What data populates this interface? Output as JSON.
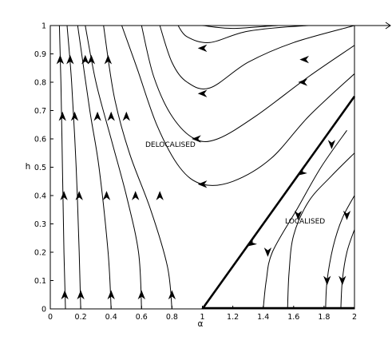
{
  "chart_data": {
    "type": "line",
    "xlabel": "α",
    "ylabel": "h",
    "xlim": [
      0,
      2
    ],
    "ylim": [
      0,
      1
    ],
    "xticks": [
      "0",
      "0.2",
      "0.4",
      "0.6",
      "0.8",
      "1",
      "1.2",
      "1.4",
      "1.6",
      "1.8",
      "2"
    ],
    "yticks": [
      "0",
      "0.1",
      "0.2",
      "0.3",
      "0.4",
      "0.5",
      "0.6",
      "0.7",
      "0.8",
      "0.9",
      "1"
    ],
    "annotations": [
      {
        "text": "DELOCALISED",
        "x": 0.96,
        "y": 0.535
      },
      {
        "text": "LOCALISED",
        "x": 1.69,
        "y": 0.285
      }
    ],
    "separatrix": [
      [
        1.0,
        0.0
      ],
      [
        2.0,
        0.75
      ]
    ],
    "bottom_fixed_line": [
      [
        1.0,
        0.0
      ],
      [
        2.0,
        0.0
      ]
    ],
    "series": [
      {
        "points": [
          [
            0.1,
            0.0
          ],
          [
            0.09,
            0.2
          ],
          [
            0.08,
            0.5
          ],
          [
            0.07,
            0.8
          ],
          [
            0.06,
            1.0
          ]
        ]
      },
      {
        "points": [
          [
            0.2,
            0.0
          ],
          [
            0.19,
            0.2
          ],
          [
            0.17,
            0.5
          ],
          [
            0.14,
            0.8
          ],
          [
            0.11,
            1.0
          ]
        ]
      },
      {
        "points": [
          [
            0.4,
            0.0
          ],
          [
            0.38,
            0.2
          ],
          [
            0.32,
            0.5
          ],
          [
            0.26,
            0.7
          ],
          [
            0.18,
            1.0
          ]
        ]
      },
      {
        "points": [
          [
            0.6,
            0.0
          ],
          [
            0.58,
            0.2
          ],
          [
            0.5,
            0.4
          ],
          [
            0.4,
            0.6
          ],
          [
            0.3,
            0.8
          ],
          [
            0.23,
            1.0
          ]
        ]
      },
      {
        "points": [
          [
            0.8,
            0.0
          ],
          [
            0.77,
            0.15
          ],
          [
            0.66,
            0.35
          ],
          [
            0.52,
            0.55
          ],
          [
            0.42,
            0.75
          ],
          [
            0.35,
            1.0
          ]
        ]
      },
      {
        "points": [
          [
            2.0,
            0.93
          ],
          [
            1.7,
            0.82
          ],
          [
            1.35,
            0.68
          ],
          [
            1.1,
            0.6
          ],
          [
            0.95,
            0.6
          ],
          [
            0.8,
            0.68
          ],
          [
            0.68,
            0.82
          ],
          [
            0.6,
            1.0
          ]
        ]
      },
      {
        "points": [
          [
            2.0,
            0.83
          ],
          [
            1.7,
            0.68
          ],
          [
            1.45,
            0.53
          ],
          [
            1.2,
            0.45
          ],
          [
            1.0,
            0.44
          ],
          [
            0.85,
            0.5
          ],
          [
            0.7,
            0.65
          ],
          [
            0.57,
            0.85
          ],
          [
            0.47,
            1.0
          ]
        ]
      },
      {
        "points": [
          [
            2.0,
            1.0
          ],
          [
            1.6,
            0.94
          ],
          [
            1.3,
            0.87
          ],
          [
            1.05,
            0.78
          ],
          [
            0.9,
            0.8
          ],
          [
            0.8,
            0.87
          ],
          [
            0.72,
            1.0
          ]
        ]
      },
      {
        "points": [
          [
            2.0,
            1.0
          ],
          [
            1.7,
            1.0
          ],
          [
            1.3,
            0.98
          ],
          [
            1.05,
            0.94
          ],
          [
            0.9,
            0.96
          ],
          [
            0.84,
            1.0
          ]
        ]
      },
      {
        "points": [
          [
            1.75,
            1.0
          ],
          [
            1.5,
            1.0
          ],
          [
            1.2,
            0.99
          ],
          [
            1.0,
            1.0
          ]
        ]
      },
      {
        "points": [
          [
            1.47,
            1.0
          ],
          [
            1.35,
            1.0
          ],
          [
            1.18,
            1.0
          ]
        ]
      },
      {
        "points": [
          [
            2.0,
            0.55
          ],
          [
            1.85,
            0.47
          ],
          [
            1.7,
            0.38
          ],
          [
            1.6,
            0.26
          ],
          [
            1.57,
            0.13
          ],
          [
            1.56,
            0.0
          ]
        ]
      },
      {
        "points": [
          [
            1.95,
            0.63
          ],
          [
            1.78,
            0.5
          ],
          [
            1.62,
            0.35
          ],
          [
            1.46,
            0.2
          ],
          [
            1.42,
            0.1
          ],
          [
            1.4,
            0.0
          ]
        ]
      },
      {
        "points": [
          [
            2.0,
            0.4
          ],
          [
            1.92,
            0.32
          ],
          [
            1.86,
            0.22
          ],
          [
            1.82,
            0.1
          ],
          [
            1.81,
            0.0
          ]
        ]
      },
      {
        "points": [
          [
            2.0,
            0.28
          ],
          [
            1.95,
            0.2
          ],
          [
            1.92,
            0.1
          ],
          [
            1.91,
            0.0
          ]
        ]
      }
    ],
    "arrows": [
      {
        "x": 0.095,
        "y": 0.05,
        "dir": "up"
      },
      {
        "x": 0.09,
        "y": 0.4,
        "dir": "up"
      },
      {
        "x": 0.08,
        "y": 0.68,
        "dir": "up"
      },
      {
        "x": 0.065,
        "y": 0.88,
        "dir": "up"
      },
      {
        "x": 0.2,
        "y": 0.05,
        "dir": "up"
      },
      {
        "x": 0.19,
        "y": 0.4,
        "dir": "up"
      },
      {
        "x": 0.16,
        "y": 0.68,
        "dir": "up"
      },
      {
        "x": 0.13,
        "y": 0.88,
        "dir": "up"
      },
      {
        "x": 0.4,
        "y": 0.05,
        "dir": "up"
      },
      {
        "x": 0.37,
        "y": 0.4,
        "dir": "up"
      },
      {
        "x": 0.31,
        "y": 0.68,
        "dir": "up"
      },
      {
        "x": 0.23,
        "y": 0.88,
        "dir": "up"
      },
      {
        "x": 0.6,
        "y": 0.05,
        "dir": "up"
      },
      {
        "x": 0.56,
        "y": 0.4,
        "dir": "up"
      },
      {
        "x": 0.4,
        "y": 0.68,
        "dir": "up"
      },
      {
        "x": 0.27,
        "y": 0.88,
        "dir": "up"
      },
      {
        "x": 0.8,
        "y": 0.05,
        "dir": "up"
      },
      {
        "x": 0.72,
        "y": 0.4,
        "dir": "up"
      },
      {
        "x": 0.5,
        "y": 0.68,
        "dir": "up"
      },
      {
        "x": 0.38,
        "y": 0.88,
        "dir": "up"
      },
      {
        "x": 1.0,
        "y": 0.44,
        "dir": "left"
      },
      {
        "x": 0.96,
        "y": 0.6,
        "dir": "left"
      },
      {
        "x": 1.0,
        "y": 0.76,
        "dir": "left"
      },
      {
        "x": 1.0,
        "y": 0.92,
        "dir": "left"
      },
      {
        "x": 1.63,
        "y": 0.33,
        "dir": "down"
      },
      {
        "x": 1.43,
        "y": 0.2,
        "dir": "down"
      },
      {
        "x": 1.82,
        "y": 0.1,
        "dir": "down"
      },
      {
        "x": 1.92,
        "y": 0.1,
        "dir": "down"
      },
      {
        "x": 1.85,
        "y": 0.58,
        "dir": "down"
      },
      {
        "x": 1.95,
        "y": 0.33,
        "dir": "down"
      },
      {
        "x": 1.67,
        "y": 0.88,
        "dir": "left"
      },
      {
        "x": 1.66,
        "y": 0.8,
        "dir": "left"
      },
      {
        "x": 1.65,
        "y": 0.48,
        "dir": "downleft"
      },
      {
        "x": 1.32,
        "y": 0.23,
        "dir": "downleft"
      }
    ]
  }
}
